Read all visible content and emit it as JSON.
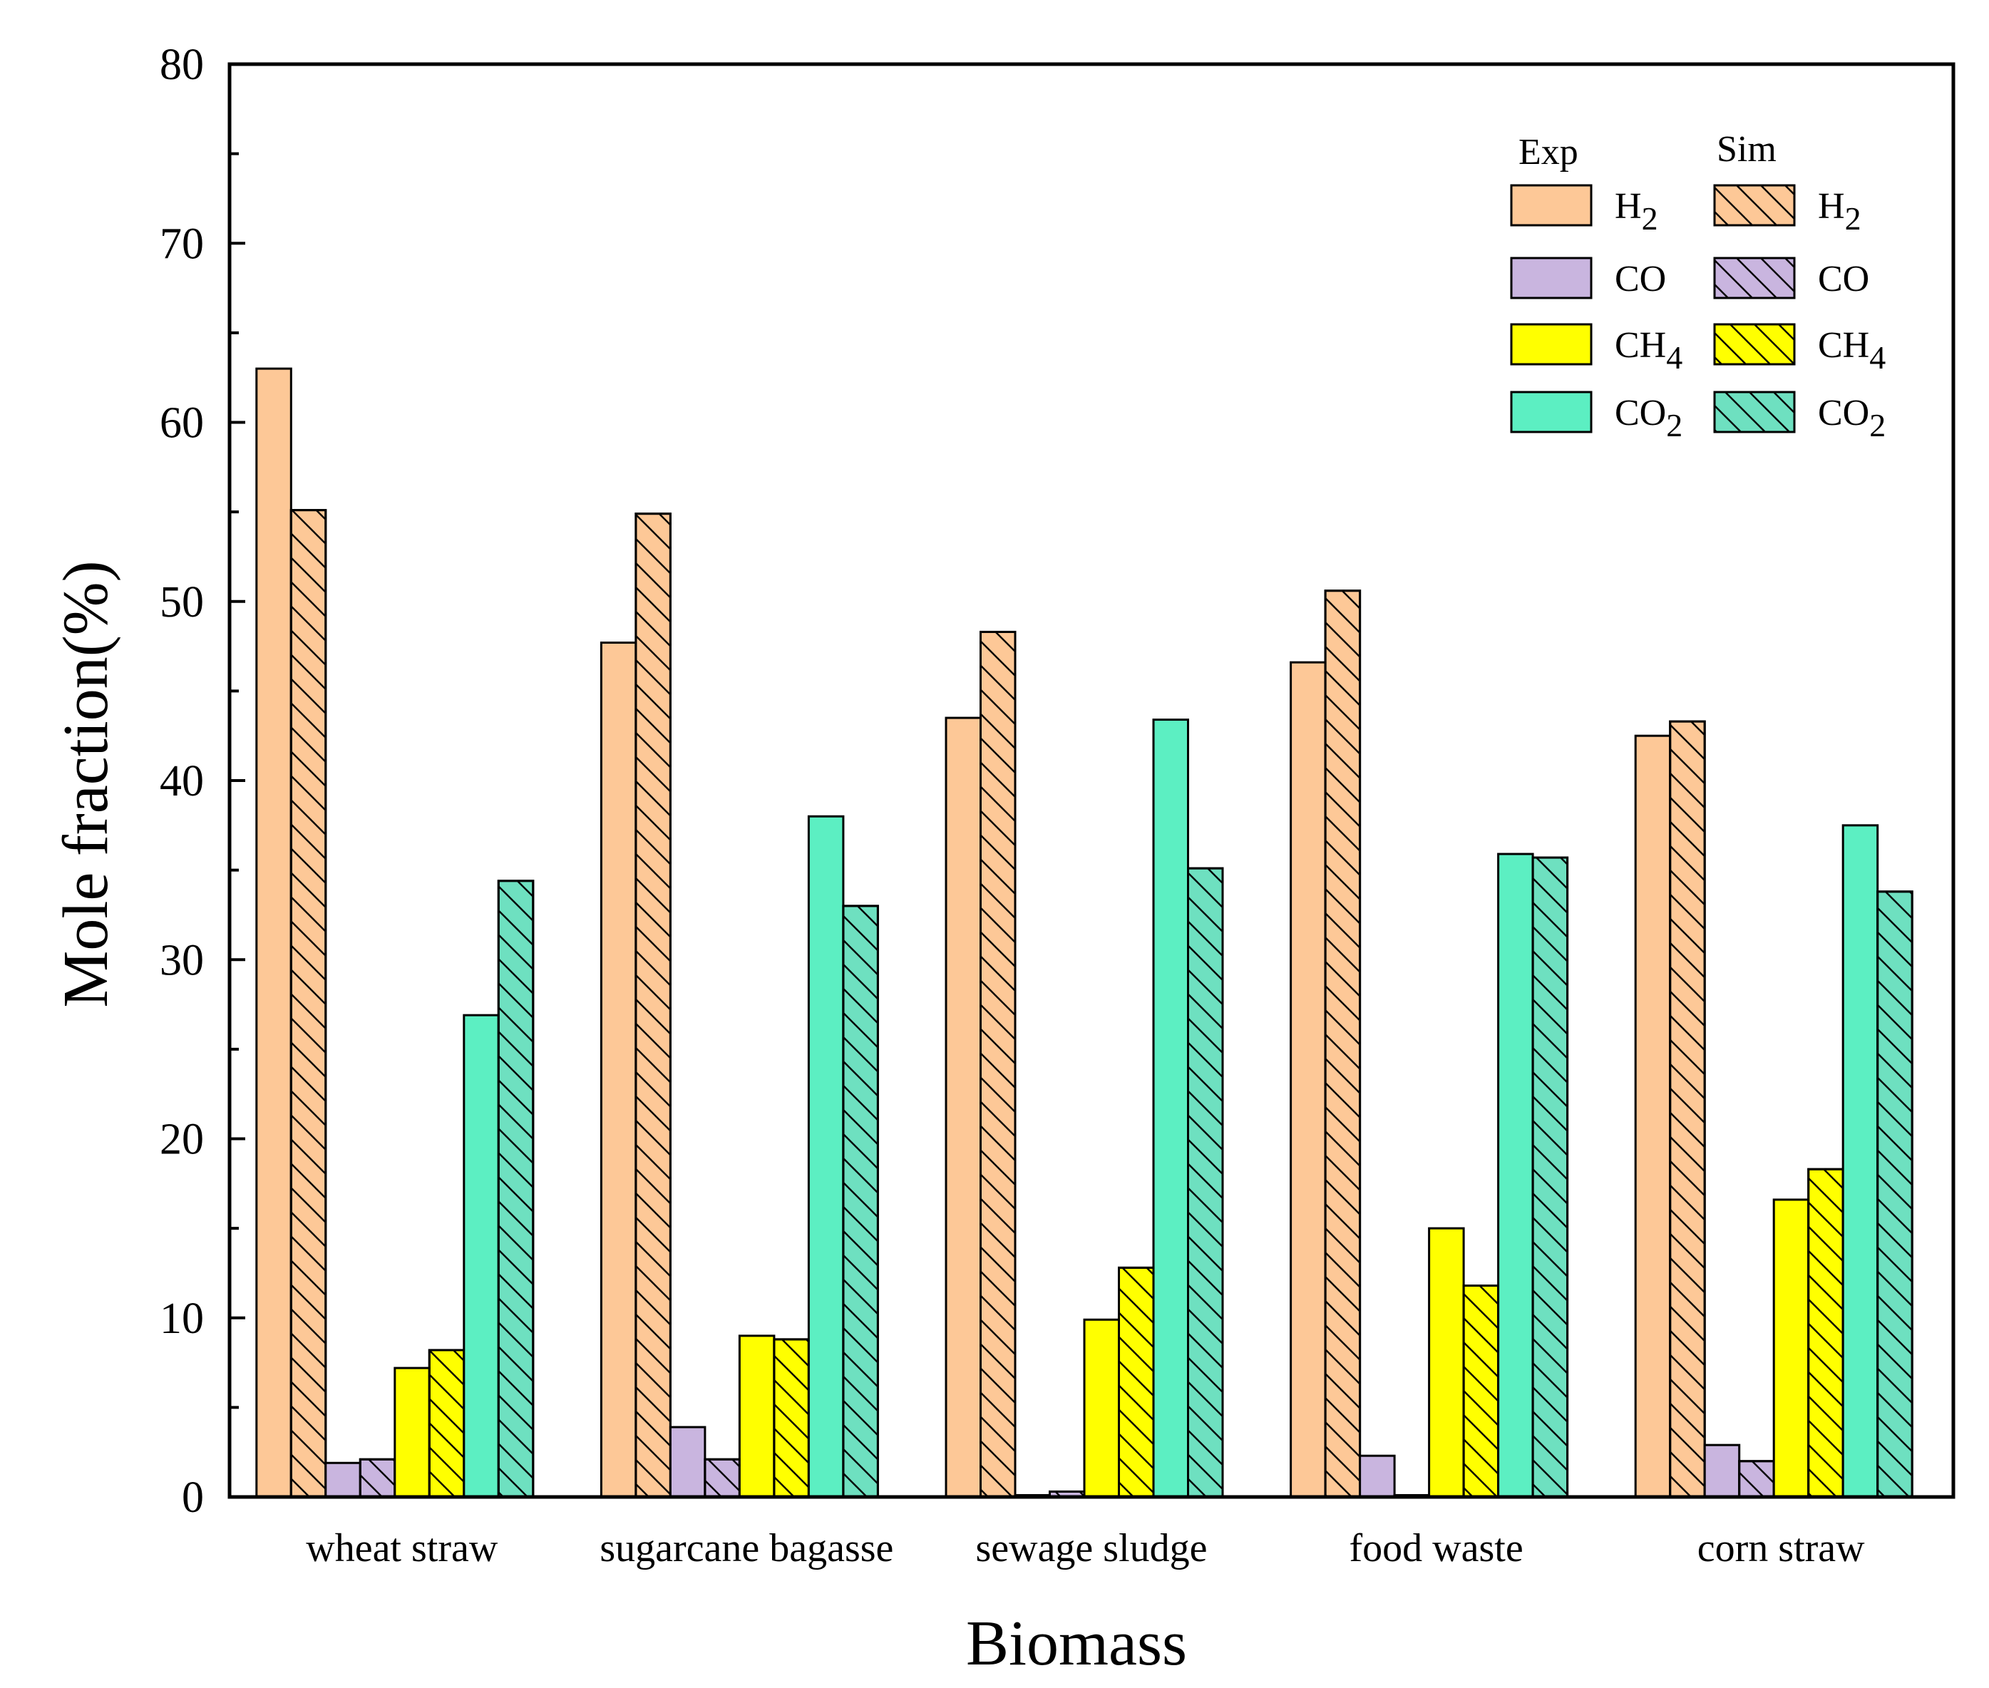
{
  "chart_data": {
    "type": "bar",
    "title": "",
    "xlabel": "Biomass",
    "ylabel": "Mole fraction(%)",
    "ylim": [
      0,
      80
    ],
    "yticks": [
      "0",
      "10",
      "20",
      "30",
      "40",
      "50",
      "60",
      "70",
      "80"
    ],
    "categories": [
      "wheat straw",
      "sugarcane bagasse",
      "sewage sludge",
      "food waste",
      "corn straw"
    ],
    "legend_headers": {
      "exp": "Exp",
      "sim": "Sim"
    },
    "legend_position": "top-right",
    "series": [
      {
        "name": "H2",
        "label_base": "H",
        "label_sub": "2",
        "group": "Exp",
        "color": "#FDC897",
        "hatch": false,
        "values": [
          63.0,
          47.7,
          43.5,
          46.6,
          42.5
        ]
      },
      {
        "name": "H2",
        "label_base": "H",
        "label_sub": "2",
        "group": "Sim",
        "color": "#FDC897",
        "hatch": true,
        "values": [
          55.1,
          54.9,
          48.3,
          50.6,
          43.3
        ]
      },
      {
        "name": "CO",
        "label_base": "CO",
        "label_sub": "",
        "group": "Exp",
        "color": "#C9B5DF",
        "hatch": false,
        "values": [
          1.9,
          3.9,
          0.1,
          2.3,
          2.9
        ]
      },
      {
        "name": "CO",
        "label_base": "CO",
        "label_sub": "",
        "group": "Sim",
        "color": "#C9B5DF",
        "hatch": true,
        "values": [
          2.1,
          2.1,
          0.3,
          0.1,
          2.0
        ]
      },
      {
        "name": "CH4",
        "label_base": "CH",
        "label_sub": "4",
        "group": "Exp",
        "color": "#FFFF00",
        "hatch": false,
        "values": [
          7.2,
          9.0,
          9.9,
          15.0,
          16.6
        ]
      },
      {
        "name": "CH4",
        "label_base": "CH",
        "label_sub": "4",
        "group": "Sim",
        "color": "#FFFF00",
        "hatch": true,
        "values": [
          8.2,
          8.8,
          12.8,
          11.8,
          18.3
        ]
      },
      {
        "name": "CO2",
        "label_base": "CO",
        "label_sub": "2",
        "group": "Exp",
        "color": "#5CEFC2",
        "hatch": false,
        "values": [
          26.9,
          38.0,
          43.4,
          35.9,
          37.5
        ]
      },
      {
        "name": "CO2",
        "label_base": "CO",
        "label_sub": "2",
        "group": "Sim",
        "color": "#6EE0C0",
        "hatch": true,
        "values": [
          34.4,
          33.0,
          35.1,
          35.7,
          33.8
        ]
      }
    ]
  }
}
